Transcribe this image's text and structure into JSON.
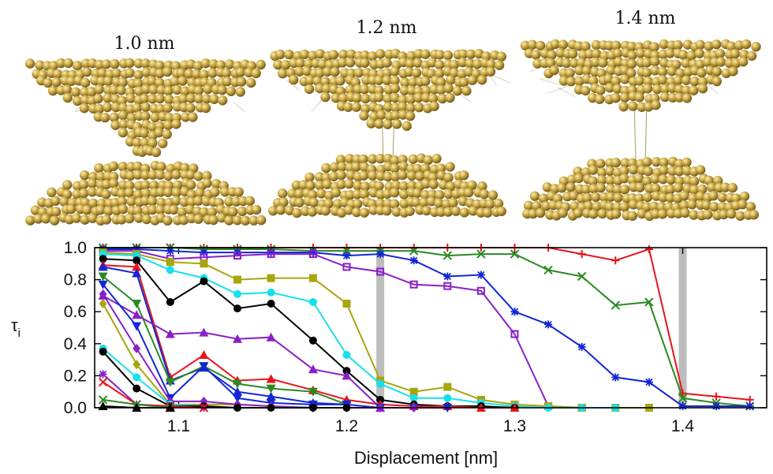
{
  "snapshots": [
    {
      "label": "1.0 nm",
      "gap": 0.15
    },
    {
      "label": "1.2 nm",
      "gap": 0.55
    },
    {
      "label": "1.4 nm",
      "gap": 1.0
    }
  ],
  "colors": {
    "gold": "#c9a94a",
    "gold_dark": "#8a7020",
    "gold_light": "#f2dd92",
    "gray_band": "#bdbdbd"
  },
  "chart_data": {
    "type": "line",
    "xlabel": "Displacement [nm]",
    "ylabel": "τ",
    "ylabel_sub": "i",
    "xlim": [
      1.05,
      1.45
    ],
    "ylim": [
      0.0,
      1.0
    ],
    "xticks": [
      1.1,
      1.2,
      1.3,
      1.4
    ],
    "xtick_labels": [
      "1.1",
      "1.2",
      "1.3",
      "1.4"
    ],
    "yticks": [
      0.0,
      0.2,
      0.4,
      0.6,
      0.8,
      1.0
    ],
    "ytick_labels": [
      "0.0",
      "0.2",
      "0.4",
      "0.6",
      "0.8",
      "1.0"
    ],
    "highlight_bands": [
      1.22,
      1.4
    ],
    "series": [
      {
        "color": "#e8141a",
        "marker": "plus",
        "points": [
          [
            1.055,
            1.0
          ],
          [
            1.075,
            1.0
          ],
          [
            1.095,
            1.0
          ],
          [
            1.115,
            1.0
          ],
          [
            1.135,
            1.0
          ],
          [
            1.155,
            1.0
          ],
          [
            1.18,
            1.0
          ],
          [
            1.2,
            1.0
          ],
          [
            1.22,
            1.0
          ],
          [
            1.24,
            1.0
          ],
          [
            1.26,
            1.0
          ],
          [
            1.28,
            1.0
          ],
          [
            1.3,
            1.0
          ],
          [
            1.32,
            1.0
          ],
          [
            1.34,
            0.96
          ],
          [
            1.36,
            0.92
          ],
          [
            1.38,
            0.99
          ],
          [
            1.4,
            0.09
          ],
          [
            1.42,
            0.07
          ],
          [
            1.44,
            0.05
          ]
        ]
      },
      {
        "color": "#2a8a22",
        "marker": "x",
        "points": [
          [
            1.055,
            1.0
          ],
          [
            1.075,
            1.0
          ],
          [
            1.095,
            1.0
          ],
          [
            1.115,
            0.99
          ],
          [
            1.135,
            0.99
          ],
          [
            1.155,
            0.99
          ],
          [
            1.18,
            0.98
          ],
          [
            1.2,
            0.98
          ],
          [
            1.22,
            0.98
          ],
          [
            1.24,
            0.98
          ],
          [
            1.26,
            0.95
          ],
          [
            1.28,
            0.96
          ],
          [
            1.3,
            0.96
          ],
          [
            1.32,
            0.86
          ],
          [
            1.34,
            0.82
          ],
          [
            1.36,
            0.64
          ],
          [
            1.38,
            0.66
          ],
          [
            1.4,
            0.06
          ],
          [
            1.42,
            0.03
          ],
          [
            1.44,
            0.01
          ]
        ]
      },
      {
        "color": "#1226d6",
        "marker": "star",
        "points": [
          [
            1.055,
            0.99
          ],
          [
            1.075,
            0.99
          ],
          [
            1.095,
            0.98
          ],
          [
            1.115,
            0.97
          ],
          [
            1.135,
            0.97
          ],
          [
            1.155,
            0.97
          ],
          [
            1.18,
            0.97
          ],
          [
            1.2,
            0.95
          ],
          [
            1.22,
            0.96
          ],
          [
            1.24,
            0.92
          ],
          [
            1.26,
            0.82
          ],
          [
            1.28,
            0.83
          ],
          [
            1.3,
            0.6
          ],
          [
            1.32,
            0.52
          ],
          [
            1.34,
            0.38
          ],
          [
            1.36,
            0.19
          ],
          [
            1.38,
            0.16
          ],
          [
            1.4,
            0.01
          ],
          [
            1.42,
            0.01
          ],
          [
            1.44,
            0.01
          ]
        ]
      },
      {
        "color": "#8a1fc9",
        "marker": "square-open",
        "points": [
          [
            1.055,
            0.98
          ],
          [
            1.075,
            0.98
          ],
          [
            1.095,
            0.93
          ],
          [
            1.115,
            0.94
          ],
          [
            1.135,
            0.95
          ],
          [
            1.155,
            0.96
          ],
          [
            1.18,
            0.96
          ],
          [
            1.2,
            0.88
          ],
          [
            1.22,
            0.85
          ],
          [
            1.24,
            0.77
          ],
          [
            1.26,
            0.76
          ],
          [
            1.28,
            0.73
          ],
          [
            1.3,
            0.46
          ],
          [
            1.32,
            0.01
          ],
          [
            1.34,
            0.0
          ]
        ]
      },
      {
        "color": "#a9a50c",
        "marker": "square",
        "points": [
          [
            1.055,
            0.97
          ],
          [
            1.075,
            0.96
          ],
          [
            1.095,
            0.91
          ],
          [
            1.115,
            0.9
          ],
          [
            1.135,
            0.8
          ],
          [
            1.155,
            0.81
          ],
          [
            1.18,
            0.81
          ],
          [
            1.2,
            0.65
          ],
          [
            1.22,
            0.17
          ],
          [
            1.24,
            0.1
          ],
          [
            1.26,
            0.13
          ],
          [
            1.28,
            0.05
          ],
          [
            1.3,
            0.02
          ],
          [
            1.32,
            0.01
          ],
          [
            1.34,
            0.0
          ],
          [
            1.36,
            0.0
          ],
          [
            1.38,
            0.0
          ]
        ]
      },
      {
        "color": "#16e0ec",
        "marker": "circle",
        "points": [
          [
            1.055,
            0.96
          ],
          [
            1.075,
            0.95
          ],
          [
            1.095,
            0.86
          ],
          [
            1.115,
            0.81
          ],
          [
            1.135,
            0.71
          ],
          [
            1.155,
            0.72
          ],
          [
            1.18,
            0.66
          ],
          [
            1.2,
            0.33
          ],
          [
            1.22,
            0.15
          ],
          [
            1.24,
            0.06
          ],
          [
            1.26,
            0.06
          ],
          [
            1.28,
            0.03
          ],
          [
            1.3,
            0.01
          ],
          [
            1.32,
            0.0
          ],
          [
            1.34,
            0.0
          ],
          [
            1.36,
            0.0
          ]
        ]
      },
      {
        "color": "#000000",
        "marker": "circle",
        "points": [
          [
            1.055,
            0.93
          ],
          [
            1.075,
            0.92
          ],
          [
            1.095,
            0.66
          ],
          [
            1.115,
            0.79
          ],
          [
            1.135,
            0.62
          ],
          [
            1.155,
            0.65
          ],
          [
            1.18,
            0.42
          ],
          [
            1.2,
            0.23
          ],
          [
            1.22,
            0.05
          ],
          [
            1.24,
            0.02
          ],
          [
            1.26,
            0.01
          ],
          [
            1.28,
            0.01
          ],
          [
            1.3,
            0.0
          ]
        ]
      },
      {
        "color": "#e8141a",
        "marker": "triangle-up",
        "points": [
          [
            1.055,
            0.89
          ],
          [
            1.075,
            0.88
          ],
          [
            1.095,
            0.19
          ],
          [
            1.115,
            0.33
          ],
          [
            1.135,
            0.17
          ],
          [
            1.155,
            0.18
          ],
          [
            1.18,
            0.11
          ],
          [
            1.2,
            0.05
          ],
          [
            1.22,
            0.02
          ],
          [
            1.24,
            0.01
          ],
          [
            1.26,
            0.01
          ],
          [
            1.28,
            0.0
          ],
          [
            1.3,
            0.0
          ]
        ]
      },
      {
        "color": "#1226d6",
        "marker": "triangle-up",
        "points": [
          [
            1.055,
            0.88
          ],
          [
            1.075,
            0.84
          ],
          [
            1.095,
            0.17
          ],
          [
            1.115,
            0.25
          ],
          [
            1.135,
            0.1
          ],
          [
            1.155,
            0.07
          ],
          [
            1.18,
            0.03
          ],
          [
            1.2,
            0.02
          ]
        ]
      },
      {
        "color": "#2a8a22",
        "marker": "triangle-down",
        "points": [
          [
            1.055,
            0.82
          ],
          [
            1.075,
            0.65
          ],
          [
            1.095,
            0.16
          ],
          [
            1.115,
            0.26
          ],
          [
            1.135,
            0.15
          ],
          [
            1.155,
            0.12
          ],
          [
            1.18,
            0.1
          ],
          [
            1.2,
            0.02
          ]
        ]
      },
      {
        "color": "#8a1fc9",
        "marker": "triangle-up",
        "points": [
          [
            1.055,
            0.7
          ],
          [
            1.075,
            0.58
          ],
          [
            1.095,
            0.46
          ],
          [
            1.115,
            0.47
          ],
          [
            1.135,
            0.43
          ],
          [
            1.155,
            0.44
          ],
          [
            1.18,
            0.24
          ],
          [
            1.2,
            0.2
          ],
          [
            1.22,
            0.0
          ]
        ]
      },
      {
        "color": "#1226d6",
        "marker": "triangle-down",
        "points": [
          [
            1.055,
            0.77
          ],
          [
            1.075,
            0.51
          ],
          [
            1.095,
            0.06
          ],
          [
            1.115,
            0.26
          ],
          [
            1.135,
            0.06
          ],
          [
            1.155,
            0.03
          ],
          [
            1.18,
            0.02
          ],
          [
            1.2,
            0.02
          ],
          [
            1.22,
            0.0
          ],
          [
            1.24,
            0.0
          ],
          [
            1.26,
            0.0
          ]
        ]
      },
      {
        "color": "#a9a50c",
        "marker": "diamond",
        "points": [
          [
            1.055,
            0.65
          ],
          [
            1.075,
            0.27
          ],
          [
            1.095,
            0.02
          ],
          [
            1.115,
            0.02
          ],
          [
            1.135,
            0.02
          ],
          [
            1.155,
            0.01
          ],
          [
            1.18,
            0.0
          ],
          [
            1.2,
            0.0
          ]
        ]
      },
      {
        "color": "#8a1fc9",
        "marker": "diamond",
        "points": [
          [
            1.055,
            0.71
          ],
          [
            1.075,
            0.37
          ],
          [
            1.095,
            0.04
          ],
          [
            1.115,
            0.04
          ],
          [
            1.135,
            0.02
          ],
          [
            1.155,
            0.01
          ],
          [
            1.18,
            0.0
          ],
          [
            1.2,
            0.0
          ],
          [
            1.22,
            0.0
          ],
          [
            1.24,
            0.0
          ]
        ]
      },
      {
        "color": "#16e0ec",
        "marker": "circle",
        "points": [
          [
            1.055,
            0.37
          ],
          [
            1.075,
            0.19
          ],
          [
            1.095,
            0.02
          ],
          [
            1.115,
            0.01
          ],
          [
            1.135,
            0.0
          ]
        ]
      },
      {
        "color": "#000000",
        "marker": "circle",
        "points": [
          [
            1.055,
            0.35
          ],
          [
            1.075,
            0.12
          ],
          [
            1.095,
            0.01
          ],
          [
            1.115,
            0.01
          ],
          [
            1.135,
            0.0
          ],
          [
            1.155,
            0.0
          ],
          [
            1.18,
            0.0
          ],
          [
            1.2,
            0.0
          ]
        ]
      },
      {
        "color": "#8a1fc9",
        "marker": "star",
        "points": [
          [
            1.055,
            0.21
          ],
          [
            1.075,
            0.02
          ],
          [
            1.095,
            0.01
          ],
          [
            1.115,
            0.0
          ]
        ]
      },
      {
        "color": "#e8141a",
        "marker": "x",
        "points": [
          [
            1.055,
            0.16
          ],
          [
            1.075,
            0.02
          ],
          [
            1.095,
            0.01
          ],
          [
            1.115,
            0.0
          ]
        ]
      },
      {
        "color": "#2a8a22",
        "marker": "x",
        "points": [
          [
            1.055,
            0.05
          ],
          [
            1.075,
            0.02
          ],
          [
            1.095,
            0.0
          ]
        ]
      },
      {
        "color": "#000000",
        "marker": "triangle-up",
        "points": [
          [
            1.055,
            0.01
          ],
          [
            1.075,
            0.0
          ],
          [
            1.095,
            0.0
          ]
        ]
      }
    ]
  }
}
